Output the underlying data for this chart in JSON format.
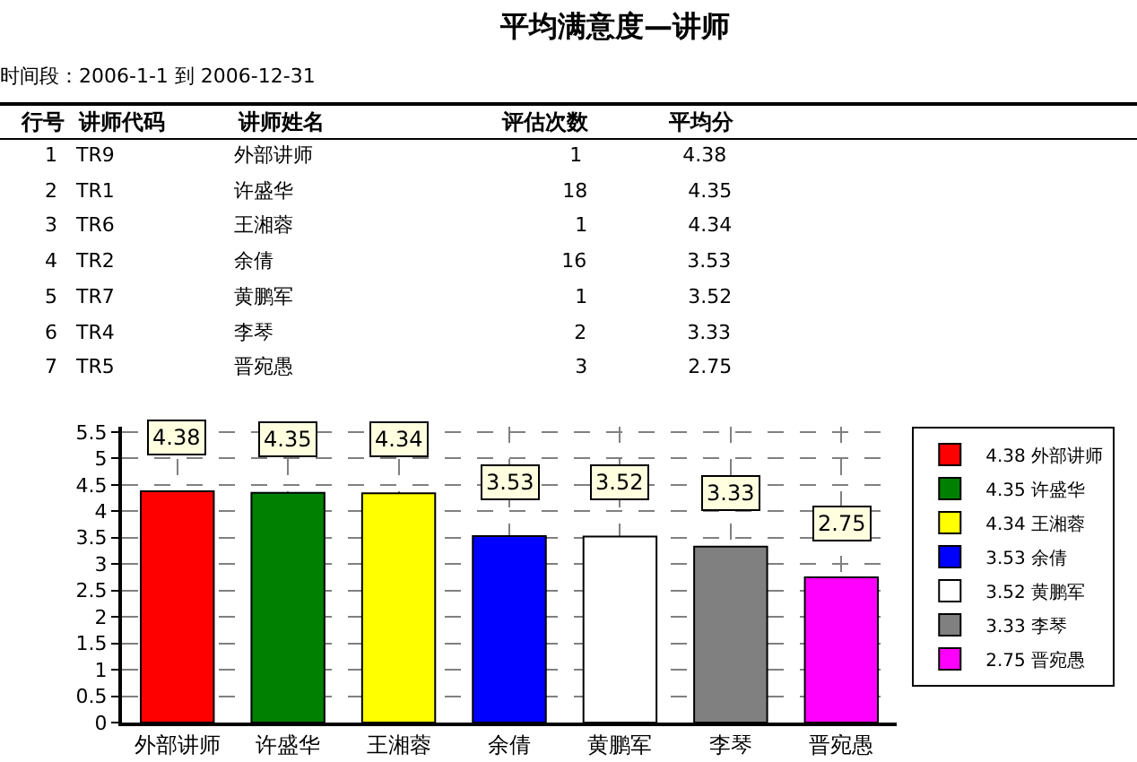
{
  "chart_data": [
    {
      "type": "other",
      "title": "平均满意度—讲师",
      "subtitle": "时间段：2006-1-1 到 2006-12-31",
      "categories": [
        "行号",
        "讲师代码",
        "讲师姓名",
        "评估次数",
        "平均分"
      ],
      "annotations": [
        "1 TR9 外部讲师 1 4.38",
        "2 TR1 许盛华 18 4.35",
        "3 TR6 王湘蓉 1 4.34",
        "4 TR2 余倩 16 3.53",
        "5 TR7 黄鹏军 1 3.52",
        "6 TR4 李琴 2 3.33",
        "7 TR5 晋宛愚 3 2.75"
      ]
    },
    {
      "type": "bar",
      "categories": [
        "外部讲师",
        "许盛华",
        "王湘蓉",
        "余倩",
        "黄鹏军",
        "李琴",
        "晋宛愚"
      ],
      "series": [
        {
          "name": "4.38 外部讲师",
          "color": "#ff0000",
          "values": [
            4.38,
            null,
            null,
            null,
            null,
            null,
            null
          ]
        },
        {
          "name": "4.35 许盛华",
          "color": "#008000",
          "values": [
            null,
            4.35,
            null,
            null,
            null,
            null,
            null
          ]
        },
        {
          "name": "4.34 王湘蓉",
          "color": "#ffff00",
          "values": [
            null,
            null,
            4.34,
            null,
            null,
            null,
            null
          ]
        },
        {
          "name": "3.53 余倩",
          "color": "#0000ff",
          "values": [
            null,
            null,
            null,
            3.53,
            null,
            null,
            null
          ]
        },
        {
          "name": "3.52 黄鹏军",
          "color": "#ffffff",
          "values": [
            null,
            null,
            null,
            null,
            3.52,
            null,
            null
          ]
        },
        {
          "name": "3.33 李琴",
          "color": "#808080",
          "values": [
            null,
            null,
            null,
            null,
            null,
            3.33,
            null
          ]
        },
        {
          "name": "2.75 晋宛愚",
          "color": "#ff00ff",
          "values": [
            null,
            null,
            null,
            null,
            null,
            null,
            2.75
          ]
        }
      ],
      "ylim": [
        0,
        5.6
      ],
      "yticks": [
        0,
        0.5,
        1,
        1.5,
        2,
        2.5,
        3,
        3.5,
        4,
        4.5,
        5,
        5.5
      ],
      "grid": true,
      "legend": "right",
      "data_labels": true
    }
  ]
}
